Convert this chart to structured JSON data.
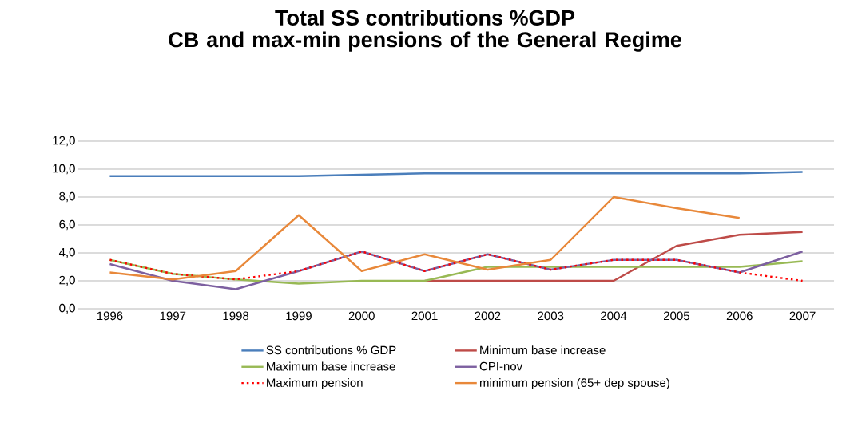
{
  "chart_data": {
    "type": "line",
    "title": "Total SS contributions %GDP",
    "subtitle": "CB and max-min pensions of the General Regime",
    "categories": [
      "1996",
      "1997",
      "1998",
      "1999",
      "2000",
      "2001",
      "2002",
      "2003",
      "2004",
      "2005",
      "2006",
      "2007"
    ],
    "ylim": [
      0,
      12
    ],
    "yticks": [
      {
        "value": 0,
        "label": "0,0"
      },
      {
        "value": 2,
        "label": "2,0"
      },
      {
        "value": 4,
        "label": "4,0"
      },
      {
        "value": 6,
        "label": "6,0"
      },
      {
        "value": 8,
        "label": "8,0"
      },
      {
        "value": 10,
        "label": "10,0"
      },
      {
        "value": 12,
        "label": "12,0"
      }
    ],
    "grid": "y",
    "legend": "bottom",
    "marker": "none",
    "series": [
      {
        "name": "SS contributions % GDP",
        "color": "#4a7ebb",
        "values": [
          9.5,
          9.5,
          9.5,
          9.5,
          9.6,
          9.7,
          9.7,
          9.7,
          9.7,
          9.7,
          9.7,
          9.8
        ]
      },
      {
        "name": "Minimum base increase",
        "color": "#be4b48",
        "values": [
          null,
          null,
          null,
          null,
          null,
          2.0,
          2.0,
          2.0,
          2.0,
          4.5,
          5.3,
          5.5
        ]
      },
      {
        "name": "Maximum base increase",
        "color": "#98b954",
        "values": [
          3.5,
          2.5,
          2.1,
          1.8,
          2.0,
          2.0,
          3.0,
          3.0,
          3.0,
          3.0,
          3.0,
          3.4
        ]
      },
      {
        "name": "CPI-nov",
        "color": "#7d60a0",
        "values": [
          3.2,
          2.0,
          1.4,
          2.7,
          4.1,
          2.7,
          3.9,
          2.8,
          3.5,
          3.5,
          2.6,
          4.1
        ]
      },
      {
        "name": "Maximum pension",
        "color": "#ff0000",
        "line_style": "dotted",
        "values": [
          3.5,
          2.5,
          2.1,
          2.7,
          4.1,
          2.7,
          3.9,
          2.8,
          3.5,
          3.5,
          2.6,
          2.0
        ]
      },
      {
        "name": "minimum pension (65+ dep spouse)",
        "color": "#e8883a",
        "values": [
          2.6,
          2.1,
          2.7,
          6.7,
          2.7,
          3.9,
          2.8,
          3.5,
          8.0,
          7.2,
          6.5,
          null
        ]
      }
    ]
  }
}
